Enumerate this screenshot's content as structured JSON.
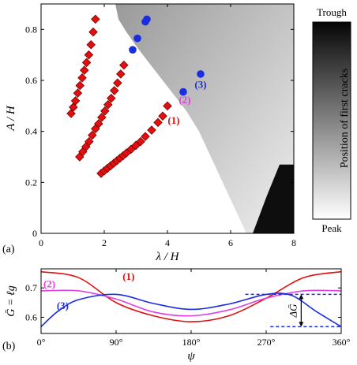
{
  "chart_data": [
    {
      "panel": "(a)",
      "type": "heatmap",
      "xlabel": "λ / H",
      "ylabel": "A / H",
      "xlim": [
        0,
        8
      ],
      "ylim": [
        0,
        0.9
      ],
      "xticks": [
        "0",
        "2",
        "4",
        "6",
        "8"
      ],
      "yticks": [
        "0",
        "0.2",
        "0.4",
        "0.6",
        "0.8"
      ],
      "colorbar": {
        "label": "Position of first cracks",
        "top": "Trough",
        "bottom": "Peak"
      },
      "heatmap_boundary": [
        [
          6.5,
          0.0
        ],
        [
          6.2,
          0.08
        ],
        [
          5.9,
          0.16
        ],
        [
          5.6,
          0.24
        ],
        [
          5.3,
          0.32
        ],
        [
          5.0,
          0.4
        ],
        [
          4.6,
          0.48
        ],
        [
          4.1,
          0.56
        ],
        [
          3.6,
          0.64
        ],
        [
          3.1,
          0.72
        ],
        [
          2.7,
          0.79
        ],
        [
          2.45,
          0.84
        ],
        [
          2.35,
          0.9
        ]
      ],
      "trough_corner": [
        6.7,
        0.0,
        8.0,
        0.27
      ],
      "series": [
        {
          "marker": "diamond",
          "color": "#e01010",
          "x": [
            0.95,
            1.02,
            1.09,
            1.16,
            1.23,
            1.3,
            1.37,
            1.44,
            1.51,
            1.58,
            1.65,
            1.72
          ],
          "y": [
            0.47,
            0.495,
            0.52,
            0.55,
            0.58,
            0.61,
            0.64,
            0.67,
            0.7,
            0.74,
            0.79,
            0.84
          ]
        },
        {
          "marker": "diamond",
          "color": "#e01010",
          "x": [
            1.22,
            1.32,
            1.42,
            1.52,
            1.62,
            1.72,
            1.82,
            1.92,
            2.02,
            2.12,
            2.22,
            2.32,
            2.42,
            2.52,
            2.62
          ],
          "y": [
            0.3,
            0.32,
            0.34,
            0.36,
            0.385,
            0.41,
            0.43,
            0.455,
            0.48,
            0.505,
            0.53,
            0.56,
            0.59,
            0.625,
            0.66
          ]
        },
        {
          "marker": "diamond",
          "color": "#e01010",
          "x": [
            1.9,
            2.0,
            2.1,
            2.2,
            2.3,
            2.4,
            2.5,
            2.6,
            2.7,
            2.85,
            3.0,
            3.15,
            3.3,
            3.5,
            3.7,
            3.85
          ],
          "y": [
            0.235,
            0.245,
            0.255,
            0.265,
            0.275,
            0.285,
            0.295,
            0.305,
            0.315,
            0.33,
            0.345,
            0.36,
            0.38,
            0.405,
            0.435,
            0.46
          ]
        },
        {
          "marker": "diamond",
          "color": "#e01010",
          "x": [
            4.0
          ],
          "y": [
            0.5
          ]
        },
        {
          "marker": "circle",
          "color": "#1a2de0",
          "x": [
            2.9,
            3.05,
            3.3,
            3.35,
            4.5,
            5.05
          ],
          "y": [
            0.72,
            0.765,
            0.83,
            0.84,
            0.555,
            0.625
          ]
        }
      ],
      "annotations": [
        {
          "text": "(1)",
          "x": 4.2,
          "y": 0.43,
          "color": "#e01010"
        },
        {
          "text": "(2)",
          "x": 4.55,
          "y": 0.51,
          "color": "#e040e0"
        },
        {
          "text": "(3)",
          "x": 5.05,
          "y": 0.57,
          "color": "#1a2de0"
        }
      ]
    },
    {
      "panel": "(b)",
      "type": "line",
      "xlabel": "ψ",
      "ylabel": "Ḡ = ℓg",
      "xlim": [
        0,
        360
      ],
      "ylim": [
        0.545,
        0.765
      ],
      "xticks": [
        "0°",
        "90°",
        "180°",
        "270°",
        "360°"
      ],
      "yticks": [
        "0.6",
        "0.7"
      ],
      "series": [
        {
          "name": "(1)",
          "color": "#e01010",
          "x": [
            0,
            45,
            90,
            135,
            180,
            225,
            270,
            315,
            360
          ],
          "y": [
            0.755,
            0.735,
            0.65,
            0.605,
            0.585,
            0.605,
            0.665,
            0.735,
            0.755
          ]
        },
        {
          "name": "(2)",
          "color": "#e040e0",
          "x": [
            0,
            45,
            90,
            135,
            180,
            225,
            270,
            315,
            360
          ],
          "y": [
            0.69,
            0.69,
            0.662,
            0.618,
            0.605,
            0.625,
            0.665,
            0.69,
            0.69
          ]
        },
        {
          "name": "(3)",
          "color": "#1a2de0",
          "x": [
            0,
            20,
            45,
            90,
            135,
            180,
            225,
            270,
            300,
            330,
            360
          ],
          "y": [
            0.568,
            0.62,
            0.66,
            0.678,
            0.647,
            0.627,
            0.645,
            0.678,
            0.675,
            0.62,
            0.568
          ]
        }
      ],
      "delta_label": "ΔḠ",
      "delta_range": [
        0.568,
        0.678
      ]
    }
  ]
}
